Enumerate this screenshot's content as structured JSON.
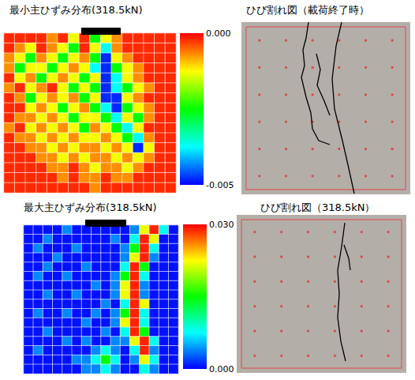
{
  "chart_data": [
    {
      "type": "heatmap",
      "title": "最小主ひずみ分布(318.5kN)",
      "tick_labels": false,
      "grid": true,
      "colorbar_range": [
        -0.005,
        0
      ],
      "colorbar_ticks": [
        {
          "value": 0,
          "label": "0.000"
        },
        {
          "value": -0.005,
          "label": "-0.005"
        }
      ],
      "cells": [
        [
          -0.0002,
          -0.0002,
          -0.0002,
          -0.0002,
          -0.0007,
          -0.0002,
          -0.0013,
          -0.0002,
          -0.0025,
          -0.0013,
          -0.0007,
          -0.0002,
          -0.0002,
          -0.0002,
          -0.0002,
          -0.0002
        ],
        [
          -0.0002,
          -0.0007,
          -0.0013,
          -0.0002,
          -0.0007,
          -0.0013,
          -0.0025,
          -0.0002,
          -0.0013,
          -0.0037,
          -0.0007,
          -0.0002,
          -0.0002,
          -0.0002,
          -0.0002,
          -0.0002
        ],
        [
          -0.0007,
          -0.0013,
          -0.0025,
          -0.0007,
          -0.0013,
          -0.0025,
          -0.0013,
          -0.0007,
          -0.0025,
          -0.0048,
          -0.0013,
          -0.0007,
          -0.0002,
          -0.0002,
          -0.0002,
          -0.0002
        ],
        [
          -0.0007,
          -0.0025,
          -0.0013,
          -0.0013,
          -0.0025,
          -0.0013,
          -0.0007,
          -0.0013,
          -0.0037,
          -0.0048,
          -0.0025,
          -0.0013,
          -0.0007,
          -0.0002,
          -0.0002,
          -0.0002
        ],
        [
          -0.0002,
          -0.0013,
          -0.0007,
          -0.0025,
          -0.0013,
          -0.0007,
          -0.0013,
          -0.0025,
          -0.0013,
          -0.0048,
          -0.0037,
          -0.0013,
          -0.0007,
          -0.0002,
          -0.0002,
          -0.0002
        ],
        [
          -0.0007,
          -0.0002,
          -0.0013,
          -0.0007,
          -0.0002,
          -0.0013,
          -0.0025,
          -0.0013,
          -0.0025,
          -0.0048,
          -0.0037,
          -0.0025,
          -0.0013,
          -0.0007,
          -0.0002,
          -0.0002
        ],
        [
          -0.0002,
          -0.0007,
          -0.0025,
          -0.0013,
          -0.0007,
          -0.0013,
          -0.0007,
          -0.0025,
          -0.0013,
          -0.0048,
          -0.0048,
          -0.0013,
          -0.0007,
          -0.0002,
          -0.0002,
          -0.0002
        ],
        [
          -0.0002,
          -0.0002,
          -0.0013,
          -0.0007,
          -0.0013,
          -0.0025,
          -0.0013,
          -0.0007,
          -0.0025,
          -0.0037,
          -0.0048,
          -0.0025,
          -0.0013,
          -0.0007,
          -0.0002,
          -0.0002
        ],
        [
          -0.0002,
          -0.0007,
          -0.0007,
          -0.0013,
          -0.0007,
          -0.0013,
          -0.0025,
          -0.0013,
          -0.0013,
          -0.0025,
          -0.0037,
          -0.0013,
          -0.0025,
          -0.0007,
          -0.0002,
          -0.0002
        ],
        [
          -0.0007,
          -0.0002,
          -0.0013,
          -0.0007,
          -0.0013,
          -0.0007,
          -0.0013,
          -0.0025,
          -0.0007,
          -0.0013,
          -0.0025,
          -0.0037,
          -0.0013,
          -0.0002,
          -0.0002,
          -0.0002
        ],
        [
          -0.0002,
          -0.0007,
          -0.0007,
          -0.0013,
          -0.0007,
          -0.0013,
          -0.0007,
          -0.0013,
          -0.0013,
          -0.0007,
          -0.0013,
          -0.0025,
          -0.0037,
          -0.0007,
          -0.0002,
          -0.0002
        ],
        [
          -0.0002,
          -0.0002,
          -0.0007,
          -0.0007,
          -0.0013,
          -0.0007,
          -0.0013,
          -0.0007,
          -0.0007,
          -0.0013,
          -0.0007,
          -0.0013,
          -0.0048,
          -0.0013,
          -0.0002,
          -0.0002
        ],
        [
          -0.0002,
          -0.0002,
          -0.0002,
          -0.0007,
          -0.0007,
          -0.0013,
          -0.0007,
          -0.0013,
          -0.0007,
          -0.0007,
          -0.0013,
          -0.0007,
          -0.0013,
          -0.0007,
          -0.0002,
          -0.0002
        ],
        [
          -0.0002,
          -0.0002,
          -0.0002,
          -0.0002,
          -0.0007,
          -0.0007,
          -0.0002,
          -0.0007,
          -0.0013,
          -0.0007,
          -0.0007,
          -0.0013,
          -0.0007,
          -0.0002,
          -0.0002,
          -0.0002
        ],
        [
          -0.0002,
          -0.0002,
          -0.0002,
          -0.0002,
          -0.0002,
          -0.0007,
          -0.0002,
          -0.0007,
          -0.0007,
          -0.0002,
          -0.0007,
          -0.0007,
          -0.0002,
          -0.0002,
          -0.0002,
          -0.0002
        ],
        [
          -0.0002,
          -0.0002,
          -0.0002,
          -0.0002,
          -0.0002,
          -0.0002,
          -0.0002,
          -0.0002,
          -0.0007,
          -0.0002,
          -0.0002,
          -0.0002,
          -0.0002,
          -0.0002,
          -0.0002,
          -0.0002
        ]
      ]
    },
    {
      "type": "heatmap",
      "title": "最大主ひずみ分布(318.5kN)",
      "tick_labels": false,
      "grid": true,
      "colorbar_range": [
        0,
        0.03
      ],
      "colorbar_ticks": [
        {
          "value": 0.03,
          "label": "0.030"
        },
        {
          "value": 0,
          "label": "0.000"
        }
      ],
      "cells": [
        [
          0.0005,
          0.0005,
          0.0005,
          0.0005,
          0.004,
          0.0005,
          0.0005,
          0.0005,
          0.0005,
          0.0005,
          0.0005,
          0.004,
          0.022,
          0.029,
          0.008,
          0.0005
        ],
        [
          0.0005,
          0.0005,
          0.004,
          0.0005,
          0.0005,
          0.0005,
          0.0005,
          0.0005,
          0.0005,
          0.004,
          0.0005,
          0.008,
          0.029,
          0.022,
          0.0005,
          0.0005
        ],
        [
          0.0005,
          0.004,
          0.0005,
          0.0005,
          0.0005,
          0.004,
          0.0005,
          0.0005,
          0.0005,
          0.0005,
          0.004,
          0.015,
          0.029,
          0.008,
          0.0005,
          0.0005
        ],
        [
          0.0005,
          0.0005,
          0.0005,
          0.004,
          0.0005,
          0.0005,
          0.0005,
          0.0005,
          0.0005,
          0.0005,
          0.004,
          0.022,
          0.029,
          0.004,
          0.0005,
          0.0005
        ],
        [
          0.0005,
          0.0005,
          0.004,
          0.0005,
          0.0005,
          0.0005,
          0.004,
          0.0005,
          0.0005,
          0.0005,
          0.008,
          0.029,
          0.015,
          0.0005,
          0.0005,
          0.0005
        ],
        [
          0.0005,
          0.004,
          0.0005,
          0.0005,
          0.004,
          0.0005,
          0.0005,
          0.0005,
          0.0005,
          0.004,
          0.015,
          0.029,
          0.008,
          0.0005,
          0.0005,
          0.0005
        ],
        [
          0.0005,
          0.0005,
          0.0005,
          0.0005,
          0.0005,
          0.0005,
          0.0005,
          0.004,
          0.0005,
          0.004,
          0.022,
          0.029,
          0.004,
          0.0005,
          0.0005,
          0.0005
        ],
        [
          0.0005,
          0.0005,
          0.004,
          0.0005,
          0.0005,
          0.004,
          0.0005,
          0.0005,
          0.0005,
          0.004,
          0.022,
          0.029,
          0.004,
          0.0005,
          0.0005,
          0.0005
        ],
        [
          0.0005,
          0.0005,
          0.0005,
          0.0005,
          0.0005,
          0.0005,
          0.0005,
          0.0005,
          0.004,
          0.0005,
          0.008,
          0.029,
          0.022,
          0.0005,
          0.0005,
          0.0005
        ],
        [
          0.0005,
          0.004,
          0.0005,
          0.0005,
          0.004,
          0.0005,
          0.0005,
          0.004,
          0.0005,
          0.004,
          0.015,
          0.029,
          0.008,
          0.0005,
          0.0005,
          0.0005
        ],
        [
          0.0005,
          0.0005,
          0.0005,
          0.0005,
          0.0005,
          0.0005,
          0.004,
          0.0005,
          0.0005,
          0.004,
          0.022,
          0.029,
          0.008,
          0.0005,
          0.0005,
          0.0005
        ],
        [
          0.0005,
          0.0005,
          0.004,
          0.0005,
          0.0005,
          0.0005,
          0.0005,
          0.0005,
          0.004,
          0.0005,
          0.008,
          0.029,
          0.015,
          0.0005,
          0.0005,
          0.0005
        ],
        [
          0.0005,
          0.0005,
          0.0005,
          0.0005,
          0.004,
          0.0005,
          0.004,
          0.0005,
          0.0005,
          0.004,
          0.004,
          0.022,
          0.029,
          0.008,
          0.0005,
          0.0005
        ],
        [
          0.0005,
          0.004,
          0.0005,
          0.0005,
          0.0005,
          0.0005,
          0.0005,
          0.004,
          0.008,
          0.004,
          0.0005,
          0.008,
          0.029,
          0.004,
          0.0005,
          0.0005
        ],
        [
          0.0005,
          0.0005,
          0.0005,
          0.0005,
          0.0005,
          0.004,
          0.004,
          0.008,
          0.015,
          0.008,
          0.0005,
          0.004,
          0.022,
          0.008,
          0.0005,
          0.0005
        ],
        [
          0.0005,
          0.0005,
          0.0005,
          0.0005,
          0.0005,
          0.0005,
          0.004,
          0.004,
          0.008,
          0.004,
          0.0005,
          0.0005,
          0.008,
          0.004,
          0.0005,
          0.0005
        ]
      ]
    }
  ],
  "photos": [
    {
      "title": "ひび割れ図（載荷終了時）"
    },
    {
      "title": "ひび割れ図（318.5kN）"
    }
  ]
}
